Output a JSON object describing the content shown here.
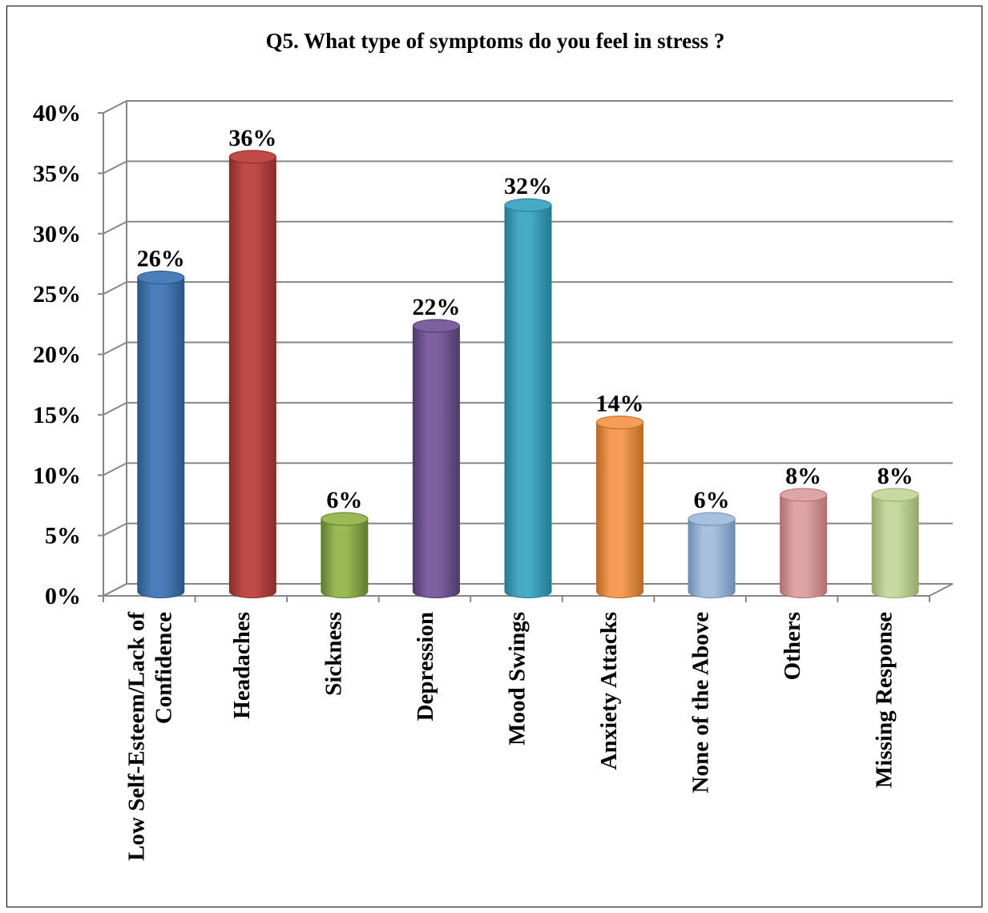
{
  "chart_data": {
    "type": "bar",
    "title": "Q5. What type of symptoms do you feel in stress ?",
    "xlabel": "",
    "ylabel": "",
    "ylim": [
      0,
      40
    ],
    "yticks": [
      "0%",
      "5%",
      "10%",
      "15%",
      "20%",
      "25%",
      "30%",
      "35%",
      "40%"
    ],
    "grid": true,
    "legend": "none",
    "categories": [
      [
        "Low Self-Esteem/Lack of",
        "Confidence"
      ],
      [
        "Headaches"
      ],
      [
        "Sickness"
      ],
      [
        "Depression"
      ],
      [
        "Mood Swings"
      ],
      [
        "Anxiety Attacks"
      ],
      [
        "None of the Above"
      ],
      [
        "Others"
      ],
      [
        "Missing Response"
      ]
    ],
    "values": [
      26,
      36,
      6,
      22,
      32,
      14,
      6,
      8,
      8
    ],
    "data_labels": [
      "26%",
      "36%",
      "6%",
      "22%",
      "32%",
      "14%",
      "6%",
      "8%",
      "8%"
    ],
    "colors": [
      "#4a7ebb",
      "#be4b48",
      "#98b954",
      "#7d60a0",
      "#46aac5",
      "#f59d56",
      "#a7c0de",
      "#dea5a4",
      "#c6d9a0"
    ],
    "dark_colors": [
      "#2b5585",
      "#8b2c2a",
      "#617a2e",
      "#4e3a6b",
      "#257a92",
      "#b86a24",
      "#6f8cb3",
      "#b06f6e",
      "#94aa6b"
    ]
  }
}
